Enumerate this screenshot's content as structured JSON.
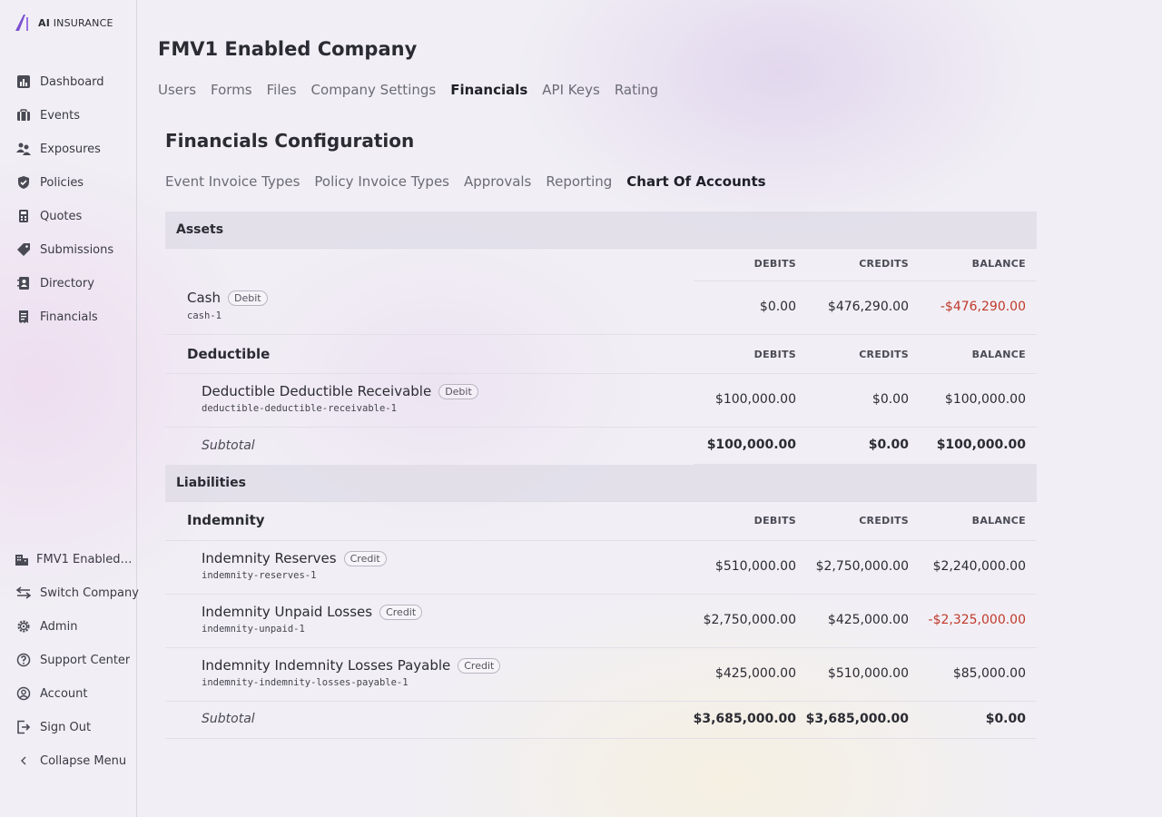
{
  "brand": {
    "name_bold": "AI",
    "name_rest": " INSURANCE"
  },
  "sidebar": {
    "items": [
      {
        "label": "Dashboard",
        "icon": "chart-icon"
      },
      {
        "label": "Events",
        "icon": "briefcase-icon"
      },
      {
        "label": "Exposures",
        "icon": "users-icon"
      },
      {
        "label": "Policies",
        "icon": "shield-icon"
      },
      {
        "label": "Quotes",
        "icon": "calculator-icon"
      },
      {
        "label": "Submissions",
        "icon": "tag-icon"
      },
      {
        "label": "Directory",
        "icon": "contacts-icon"
      },
      {
        "label": "Financials",
        "icon": "receipt-icon"
      }
    ],
    "bottom_items": [
      {
        "label": "FMV1 Enabled Company",
        "icon": "building-icon"
      },
      {
        "label": "Switch Company",
        "icon": "switch-icon"
      },
      {
        "label": "Admin",
        "icon": "gear-icon"
      },
      {
        "label": "Support Center",
        "icon": "question-icon"
      },
      {
        "label": "Account",
        "icon": "user-circle-icon"
      },
      {
        "label": "Sign Out",
        "icon": "sign-out-icon"
      },
      {
        "label": "Collapse Menu",
        "icon": "chevron-left-icon"
      }
    ]
  },
  "header": {
    "company_title": "FMV1 Enabled Company"
  },
  "tabs": [
    {
      "label": "Users",
      "active": false
    },
    {
      "label": "Forms",
      "active": false
    },
    {
      "label": "Files",
      "active": false
    },
    {
      "label": "Company Settings",
      "active": false
    },
    {
      "label": "Financials",
      "active": true
    },
    {
      "label": "API Keys",
      "active": false
    },
    {
      "label": "Rating",
      "active": false
    }
  ],
  "section": {
    "title": "Financials Configuration"
  },
  "subtabs": [
    {
      "label": "Event Invoice Types",
      "active": false
    },
    {
      "label": "Policy Invoice Types",
      "active": false
    },
    {
      "label": "Approvals",
      "active": false
    },
    {
      "label": "Reporting",
      "active": false
    },
    {
      "label": "Chart Of Accounts",
      "active": true
    }
  ],
  "columns": {
    "debits": "DEBITS",
    "credits": "CREDITS",
    "balance": "BALANCE"
  },
  "assets": {
    "label": "Assets",
    "cash": {
      "name": "Cash",
      "badge": "Debit",
      "code": "cash-1",
      "debits": "$0.00",
      "credits": "$476,290.00",
      "balance": "-$476,290.00"
    },
    "deductible": {
      "label": "Deductible",
      "account": {
        "name": "Deductible Deductible Receivable",
        "badge": "Debit",
        "code": "deductible-deductible-receivable-1",
        "debits": "$100,000.00",
        "credits": "$0.00",
        "balance": "$100,000.00"
      },
      "subtotal": {
        "label": "Subtotal",
        "debits": "$100,000.00",
        "credits": "$0.00",
        "balance": "$100,000.00"
      }
    }
  },
  "liabilities": {
    "label": "Liabilities",
    "indemnity": {
      "label": "Indemnity",
      "accounts": [
        {
          "name": "Indemnity Reserves",
          "badge": "Credit",
          "code": "indemnity-reserves-1",
          "debits": "$510,000.00",
          "credits": "$2,750,000.00",
          "balance": "$2,240,000.00"
        },
        {
          "name": "Indemnity Unpaid Losses",
          "badge": "Credit",
          "code": "indemnity-unpaid-1",
          "debits": "$2,750,000.00",
          "credits": "$425,000.00",
          "balance": "-$2,325,000.00"
        },
        {
          "name": "Indemnity Indemnity Losses Payable",
          "badge": "Credit",
          "code": "indemnity-indemnity-losses-payable-1",
          "debits": "$425,000.00",
          "credits": "$510,000.00",
          "balance": "$85,000.00"
        }
      ],
      "subtotal": {
        "label": "Subtotal",
        "debits": "$3,685,000.00",
        "credits": "$3,685,000.00",
        "balance": "$0.00"
      }
    }
  },
  "colors": {
    "accent": "#7b4fd1",
    "negative": "#c0392b"
  }
}
